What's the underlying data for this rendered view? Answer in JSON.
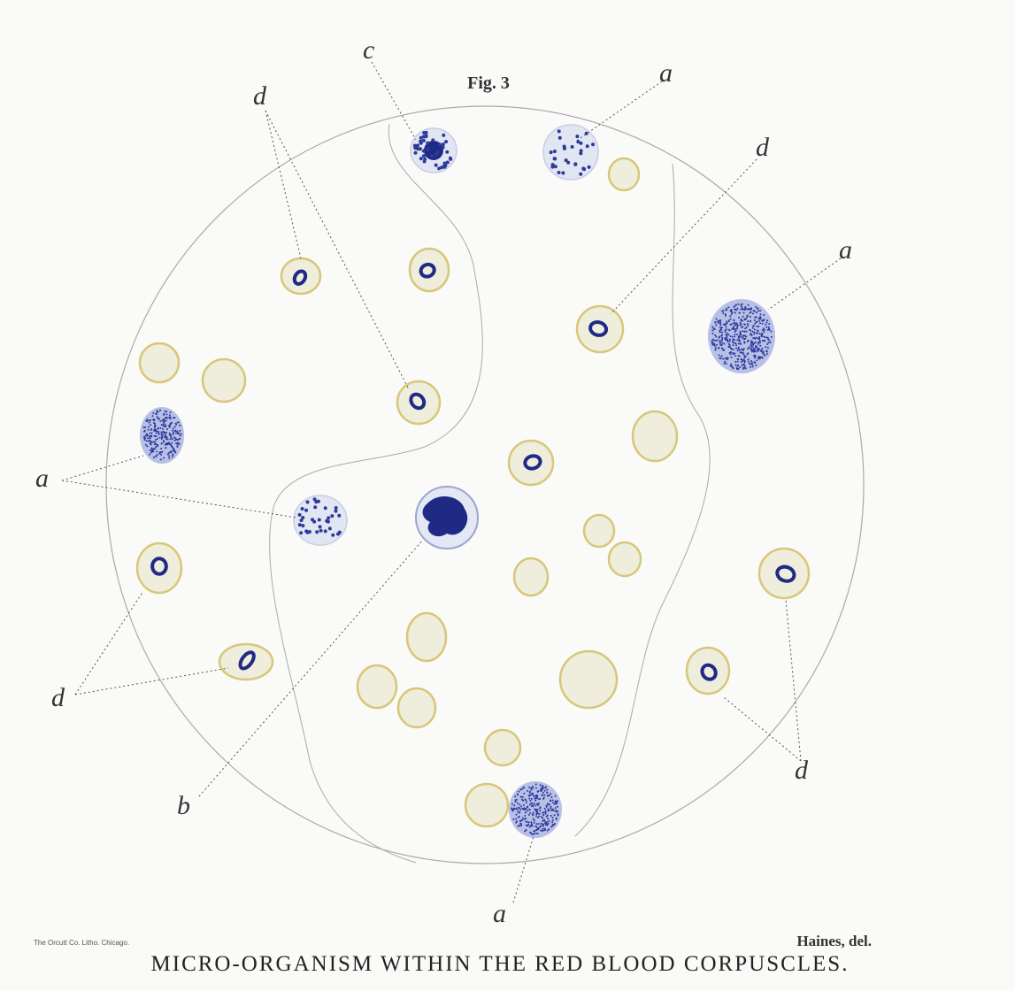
{
  "figure": {
    "title": "Fig. 3",
    "labels": [
      "c",
      "a",
      "d",
      "d",
      "a",
      "a",
      "d",
      "b",
      "d",
      "a"
    ]
  },
  "imprint": "The Orcutt Co. Litho. Chicago.",
  "artist": "Haines, del.",
  "caption": "MICRO-ORGANISM WITHIN THE RED BLOOD CORPUSCLES."
}
